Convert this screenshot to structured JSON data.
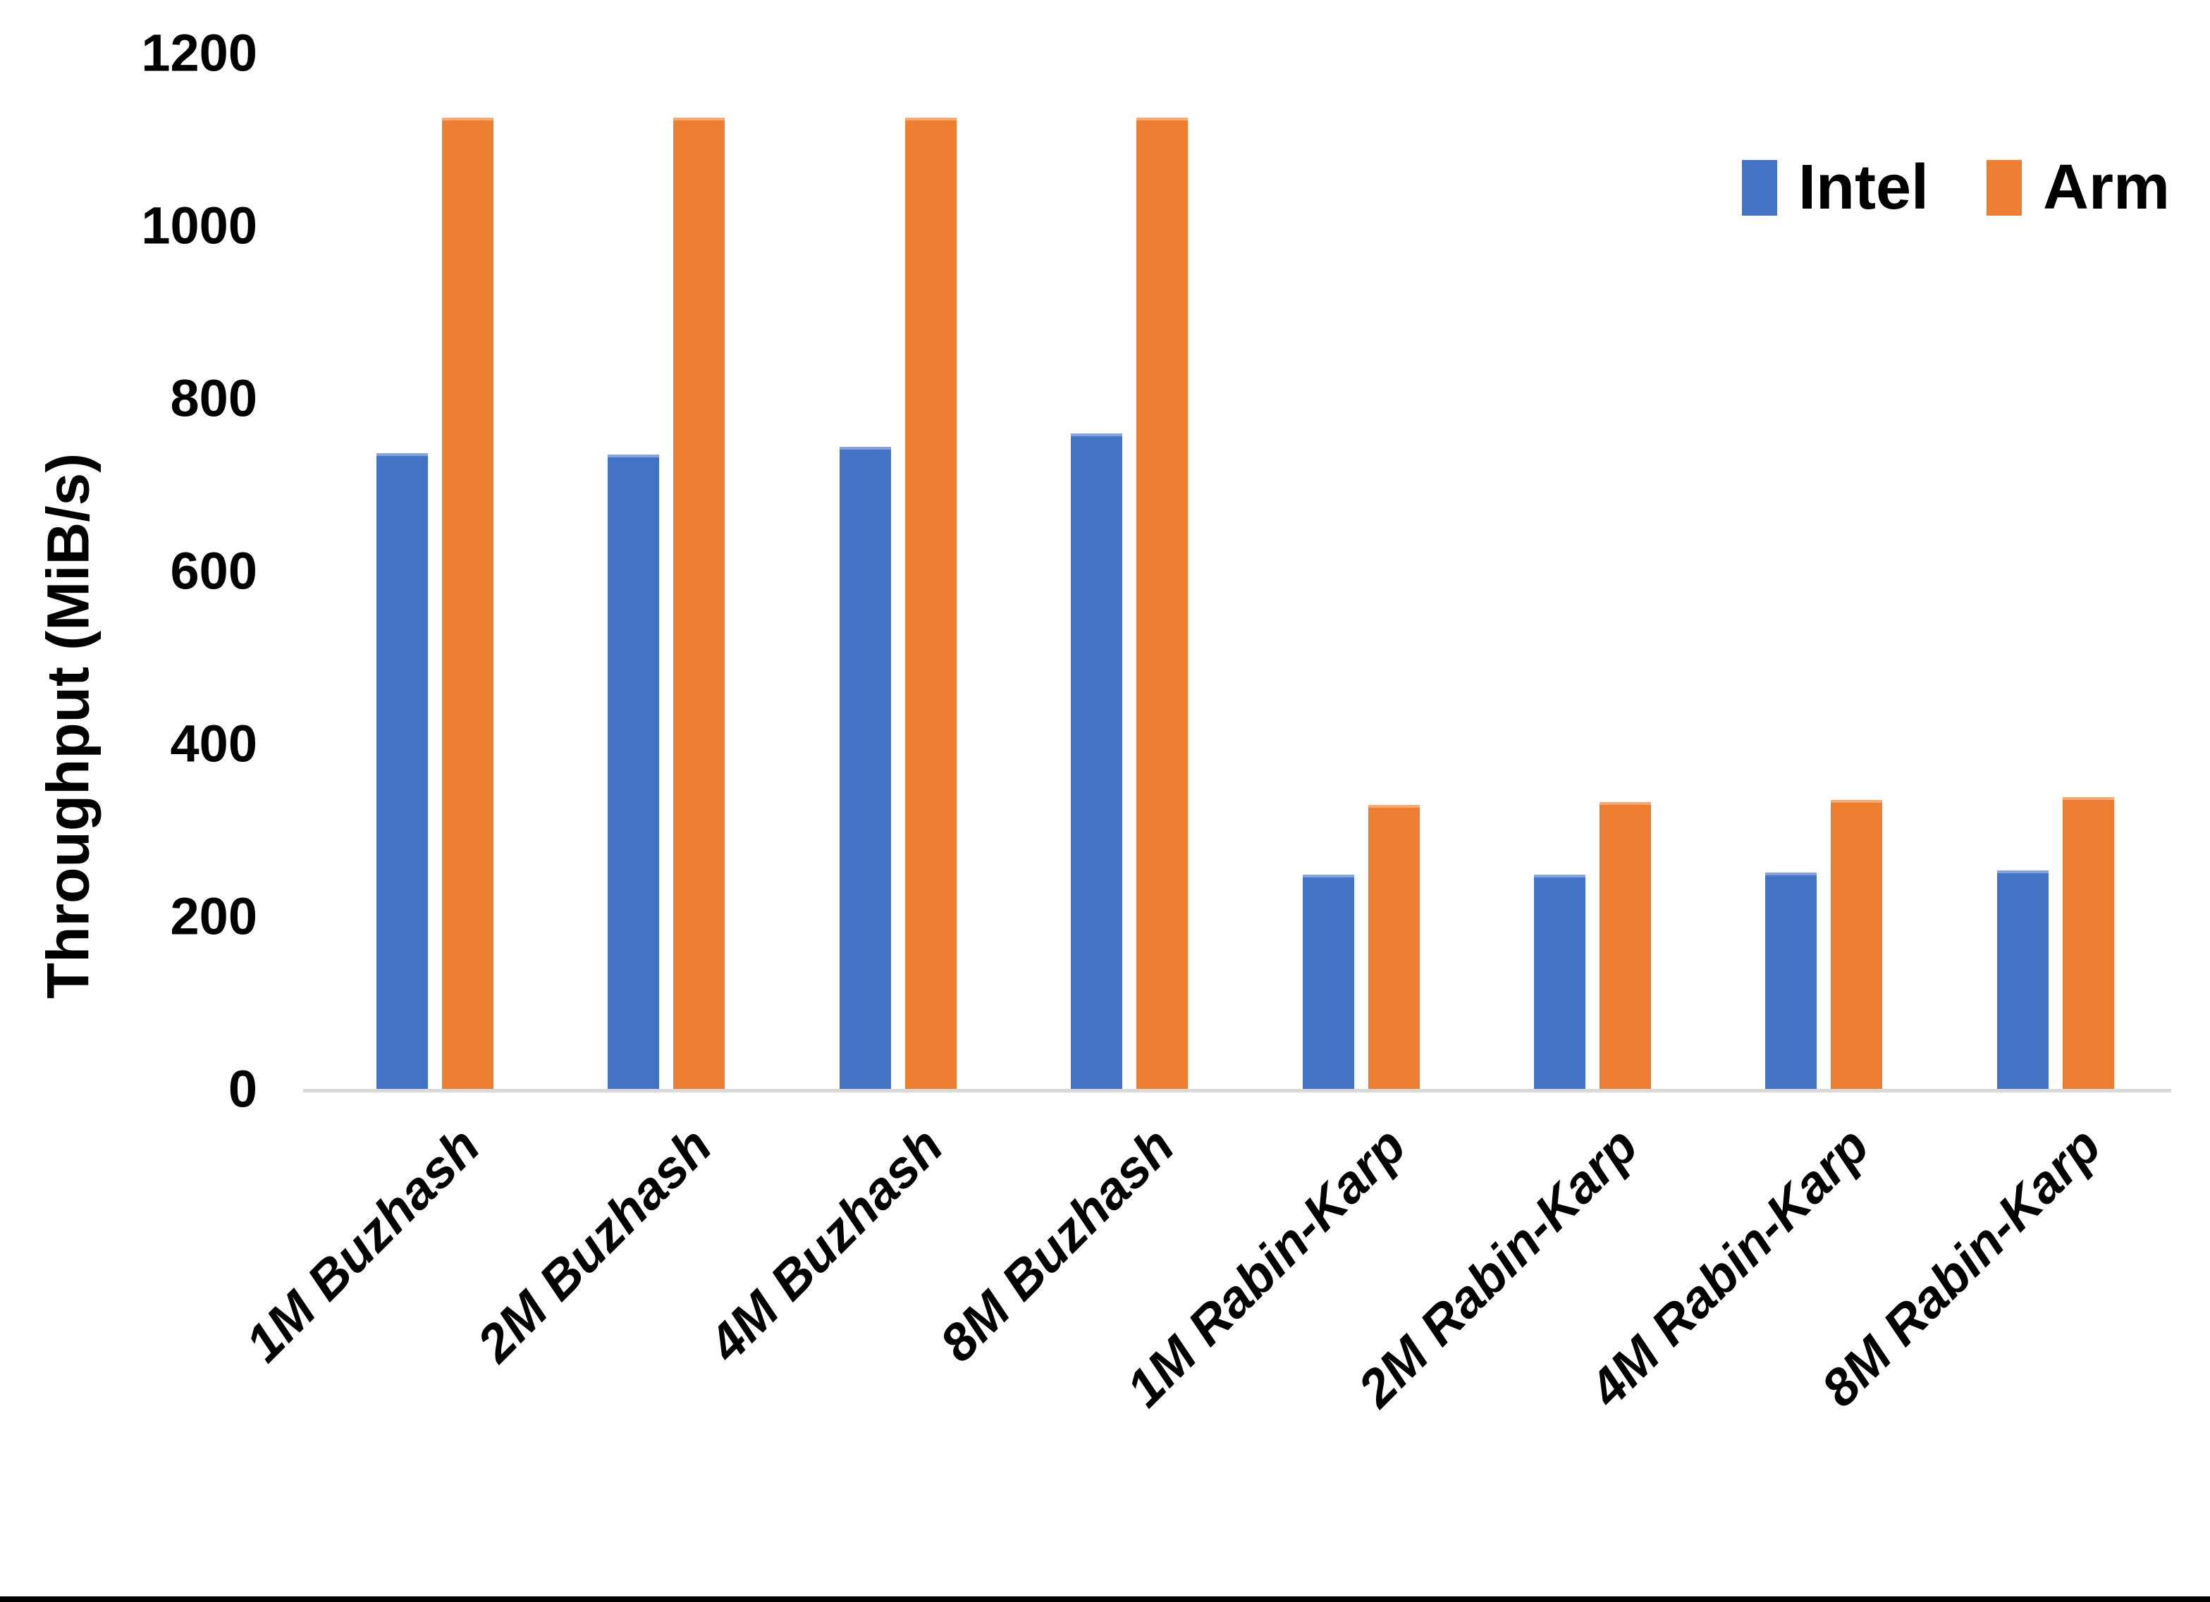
{
  "chart_data": {
    "type": "bar",
    "title": "",
    "xlabel": "",
    "ylabel": "Throughput (MiB/s)",
    "ylim": [
      0,
      1200
    ],
    "yticks": [
      0,
      200,
      400,
      600,
      800,
      1000,
      1200
    ],
    "grid": false,
    "legend_position": "top-right",
    "categories": [
      "1M Buzhash",
      "2M Buzhash",
      "4M Buzhash",
      "8M Buzhash",
      "1M Rabin-Karp",
      "2M Rabin-Karp",
      "4M Rabin-Karp",
      "8M Rabin-Karp"
    ],
    "series": [
      {
        "name": "Intel",
        "color": "#4472C4",
        "values": [
          736,
          735,
          744,
          759,
          248,
          248,
          251,
          253
        ]
      },
      {
        "name": "Arm",
        "color": "#ED7D31",
        "values": [
          1125,
          1125,
          1125,
          1125,
          329,
          332,
          335,
          338
        ]
      }
    ],
    "axis_line_color": "#D9D9D9",
    "frame_bottom_color": "#000000"
  }
}
